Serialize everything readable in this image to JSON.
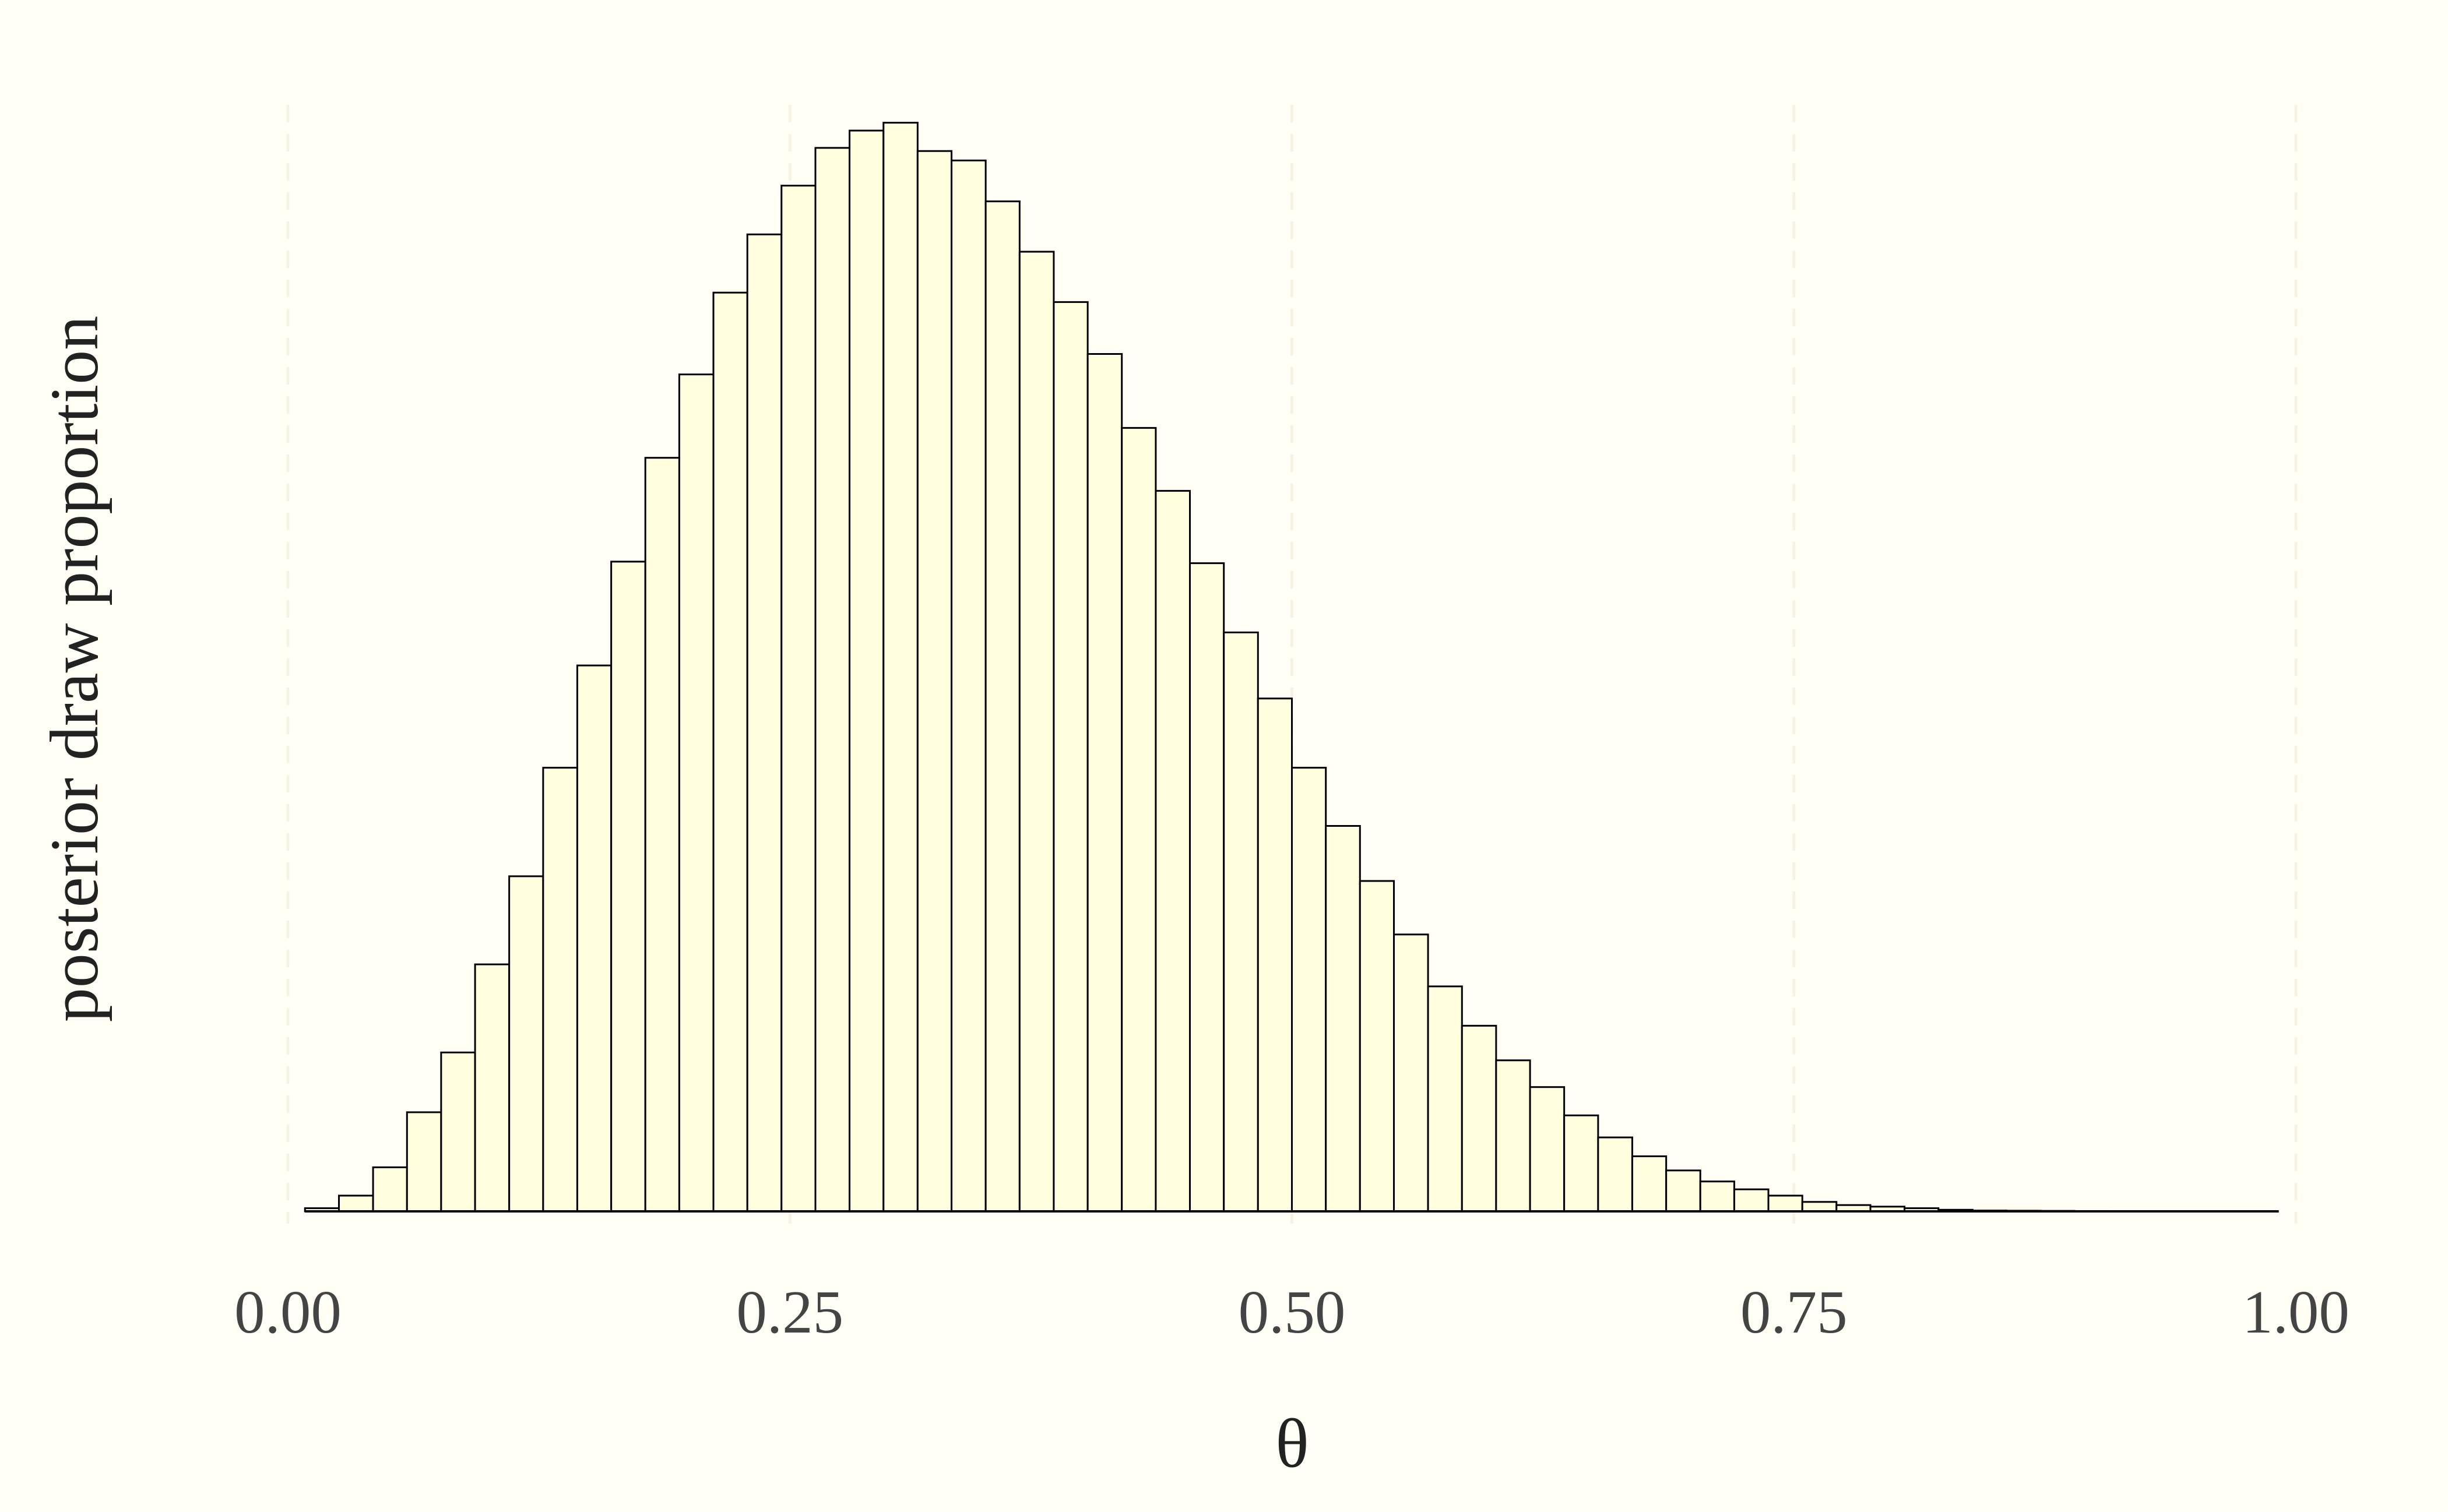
{
  "chart_data": {
    "type": "histogram",
    "x_label": "θ",
    "y_label": "posterior draw proportion",
    "bins": [
      0.0085,
      0.0254,
      0.0424,
      0.0593,
      0.0763,
      0.0932,
      0.1102,
      0.1271,
      0.1441,
      0.161,
      0.178,
      0.1949,
      0.2119,
      0.2288,
      0.2458,
      0.2627,
      0.2797,
      0.2966,
      0.3136,
      0.3305,
      0.3475,
      0.3644,
      0.3814,
      0.3983,
      0.4153,
      0.4322,
      0.4492,
      0.4661,
      0.4831,
      0.5,
      0.5169,
      0.5339,
      0.5508,
      0.5678,
      0.5847,
      0.6017,
      0.6186,
      0.6356,
      0.6525,
      0.6695,
      0.6864,
      0.7034,
      0.7203,
      0.7373,
      0.7542,
      0.7712,
      0.7881,
      0.8051,
      0.822,
      0.839,
      0.8559,
      0.8729,
      0.8898,
      0.9068,
      0.9237,
      0.9407,
      0.9576,
      0.9746,
      0.9915
    ],
    "values": [
      2,
      10,
      28,
      63,
      101,
      157,
      213,
      282,
      347,
      413,
      479,
      532,
      584,
      621,
      652,
      676,
      687,
      692,
      674,
      668,
      642,
      610,
      578,
      545,
      498,
      458,
      412,
      368,
      326,
      282,
      245,
      210,
      176,
      143,
      118,
      96,
      79,
      61,
      47,
      35,
      26,
      19,
      14,
      10,
      6,
      4,
      3,
      2,
      1,
      0.5,
      0.4,
      0.3,
      0.2,
      0.1,
      0.1,
      0.1,
      0,
      0
    ],
    "color": "#ffffe0",
    "edgecolor": "#000000",
    "xlim": [
      0,
      1
    ],
    "ylim": [
      0,
      700
    ],
    "xticks": [
      {
        "value": 0,
        "label": "0.00"
      },
      {
        "value": 0.25,
        "label": "0.25"
      },
      {
        "value": 0.5,
        "label": "0.50"
      },
      {
        "value": 0.75,
        "label": "0.75"
      },
      {
        "value": 1,
        "label": "1.00"
      }
    ],
    "grid": true
  }
}
